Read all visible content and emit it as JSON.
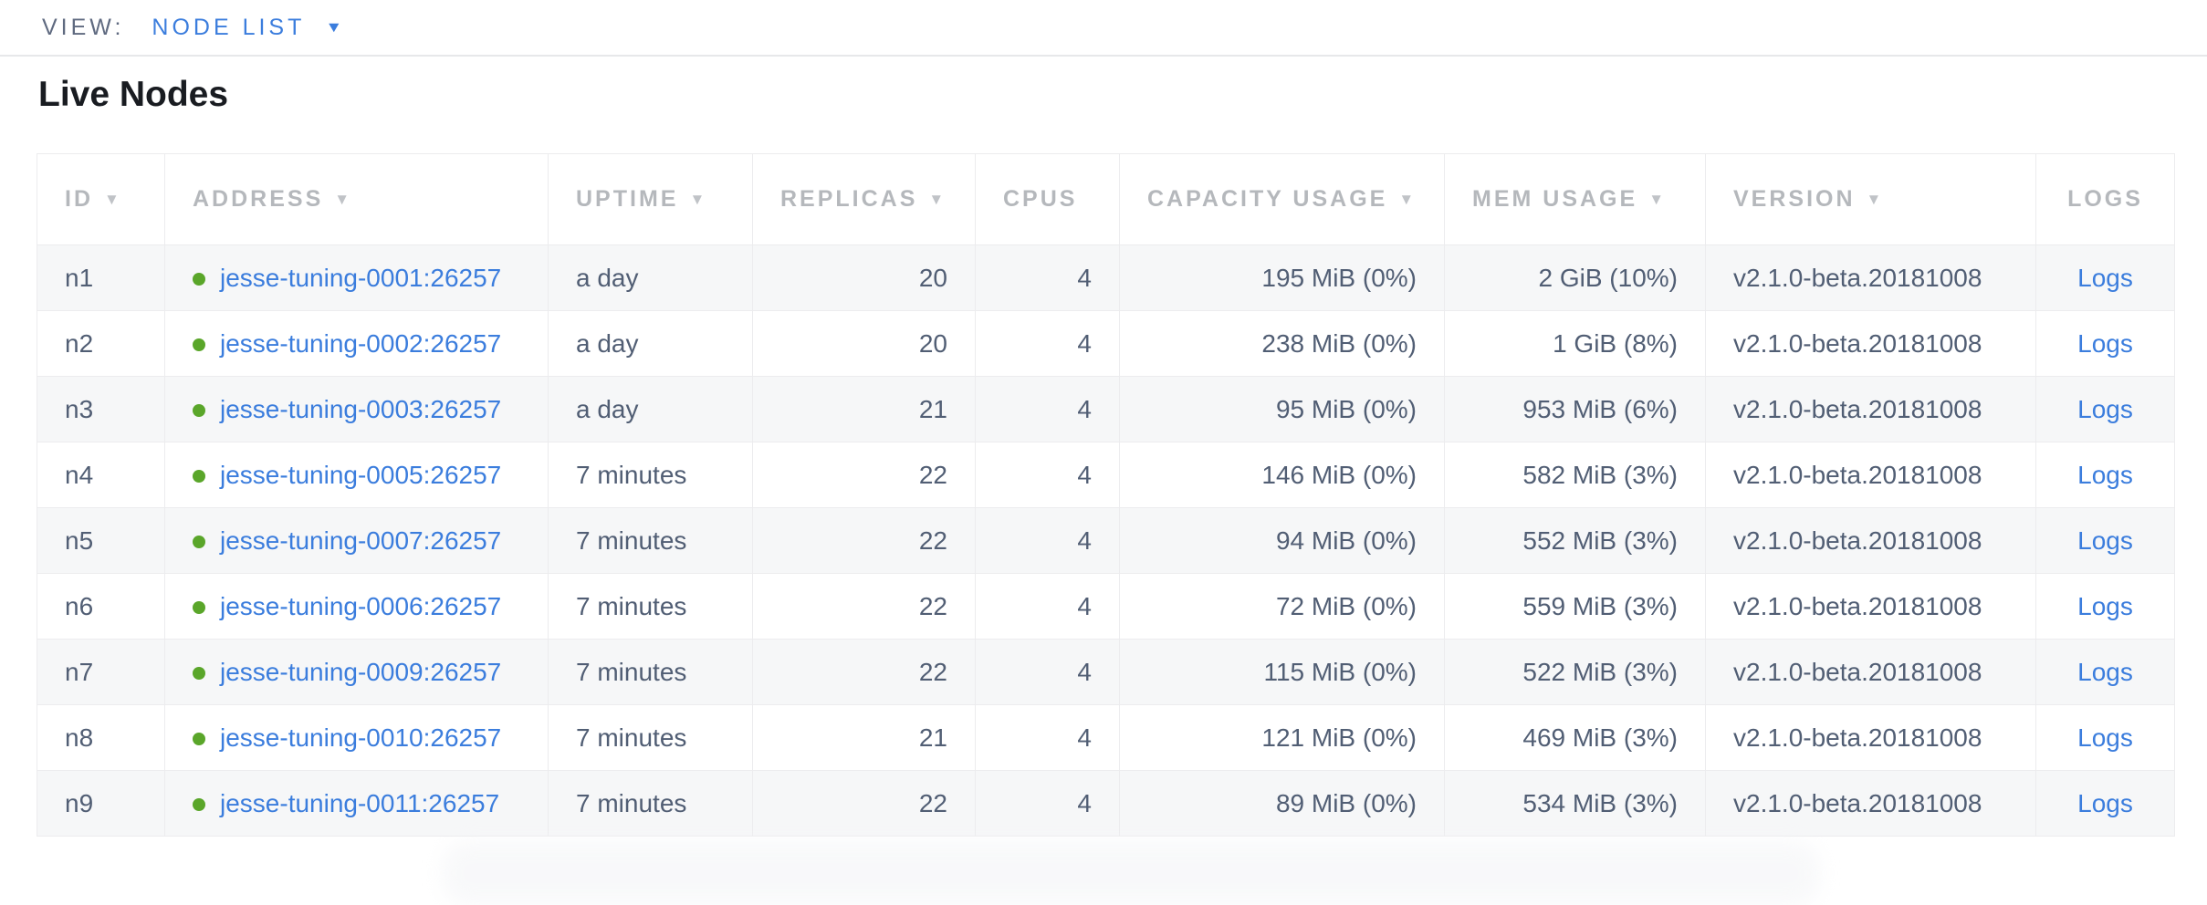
{
  "view_bar": {
    "label": "VIEW:",
    "selected_view": "NODE LIST"
  },
  "page": {
    "title": "Live Nodes"
  },
  "icons": {
    "sort_desc": "▼",
    "dropdown_caret": "▼"
  },
  "colors": {
    "link_blue": "#3b7ddd",
    "live_status_green": "#5aa62a",
    "header_gray": "#b5b8bc",
    "cell_text": "#515e74",
    "row_stripe": "#f6f7f8"
  },
  "table": {
    "columns": [
      {
        "key": "id",
        "label": "ID",
        "sortable": true,
        "align": "left"
      },
      {
        "key": "address",
        "label": "ADDRESS",
        "sortable": true,
        "align": "left"
      },
      {
        "key": "uptime",
        "label": "UPTIME",
        "sortable": true,
        "align": "left"
      },
      {
        "key": "replicas",
        "label": "REPLICAS",
        "sortable": true,
        "align": "right"
      },
      {
        "key": "cpus",
        "label": "CPUS",
        "sortable": false,
        "align": "right"
      },
      {
        "key": "capacity_usage",
        "label": "CAPACITY USAGE",
        "sortable": true,
        "align": "right"
      },
      {
        "key": "mem_usage",
        "label": "MEM USAGE",
        "sortable": true,
        "align": "right"
      },
      {
        "key": "version",
        "label": "VERSION",
        "sortable": true,
        "align": "left"
      },
      {
        "key": "logs",
        "label": "LOGS",
        "sortable": false,
        "align": "center"
      }
    ],
    "rows": [
      {
        "id": "n1",
        "address": "jesse-tuning-0001:26257",
        "uptime": "a day",
        "replicas": "20",
        "cpus": "4",
        "capacity_usage": "195 MiB (0%)",
        "mem_usage": "2 GiB (10%)",
        "version": "v2.1.0-beta.20181008",
        "logs": "Logs"
      },
      {
        "id": "n2",
        "address": "jesse-tuning-0002:26257",
        "uptime": "a day",
        "replicas": "20",
        "cpus": "4",
        "capacity_usage": "238 MiB (0%)",
        "mem_usage": "1 GiB (8%)",
        "version": "v2.1.0-beta.20181008",
        "logs": "Logs"
      },
      {
        "id": "n3",
        "address": "jesse-tuning-0003:26257",
        "uptime": "a day",
        "replicas": "21",
        "cpus": "4",
        "capacity_usage": "95 MiB (0%)",
        "mem_usage": "953 MiB (6%)",
        "version": "v2.1.0-beta.20181008",
        "logs": "Logs"
      },
      {
        "id": "n4",
        "address": "jesse-tuning-0005:26257",
        "uptime": "7 minutes",
        "replicas": "22",
        "cpus": "4",
        "capacity_usage": "146 MiB (0%)",
        "mem_usage": "582 MiB (3%)",
        "version": "v2.1.0-beta.20181008",
        "logs": "Logs"
      },
      {
        "id": "n5",
        "address": "jesse-tuning-0007:26257",
        "uptime": "7 minutes",
        "replicas": "22",
        "cpus": "4",
        "capacity_usage": "94 MiB (0%)",
        "mem_usage": "552 MiB (3%)",
        "version": "v2.1.0-beta.20181008",
        "logs": "Logs"
      },
      {
        "id": "n6",
        "address": "jesse-tuning-0006:26257",
        "uptime": "7 minutes",
        "replicas": "22",
        "cpus": "4",
        "capacity_usage": "72 MiB (0%)",
        "mem_usage": "559 MiB (3%)",
        "version": "v2.1.0-beta.20181008",
        "logs": "Logs"
      },
      {
        "id": "n7",
        "address": "jesse-tuning-0009:26257",
        "uptime": "7 minutes",
        "replicas": "22",
        "cpus": "4",
        "capacity_usage": "115 MiB (0%)",
        "mem_usage": "522 MiB (3%)",
        "version": "v2.1.0-beta.20181008",
        "logs": "Logs"
      },
      {
        "id": "n8",
        "address": "jesse-tuning-0010:26257",
        "uptime": "7 minutes",
        "replicas": "21",
        "cpus": "4",
        "capacity_usage": "121 MiB (0%)",
        "mem_usage": "469 MiB (3%)",
        "version": "v2.1.0-beta.20181008",
        "logs": "Logs"
      },
      {
        "id": "n9",
        "address": "jesse-tuning-0011:26257",
        "uptime": "7 minutes",
        "replicas": "22",
        "cpus": "4",
        "capacity_usage": "89 MiB (0%)",
        "mem_usage": "534 MiB (3%)",
        "version": "v2.1.0-beta.20181008",
        "logs": "Logs"
      }
    ]
  }
}
